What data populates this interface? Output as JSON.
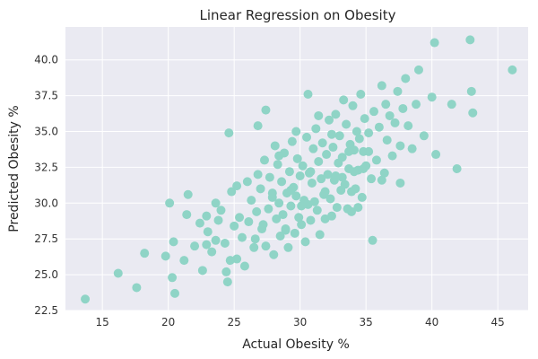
{
  "chart_data": {
    "type": "scatter",
    "title": "Linear Regression on Obesity",
    "xlabel": "Actual Obesity %",
    "ylabel": "Predicted Obesity %",
    "xlim": [
      12.2,
      47.3
    ],
    "ylim": [
      22.5,
      42.3
    ],
    "xticks": [
      15,
      20,
      25,
      30,
      35,
      40,
      45
    ],
    "yticks": [
      22.5,
      25.0,
      27.5,
      30.0,
      32.5,
      35.0,
      37.5,
      40.0
    ],
    "ytick_labels": [
      "22.5",
      "25.0",
      "27.5",
      "30.0",
      "32.5",
      "35.0",
      "37.5",
      "40.0"
    ],
    "grid": true,
    "colors": {
      "background": "#eaeaf2",
      "grid": "#ffffff",
      "marker": "#8fd4c6"
    },
    "x": [
      13.7,
      16.2,
      17.6,
      18.2,
      19.8,
      20.1,
      20.4,
      20.3,
      20.5,
      21.2,
      21.5,
      22.0,
      22.4,
      22.6,
      22.9,
      23.0,
      23.3,
      23.6,
      23.8,
      24.0,
      24.3,
      24.5,
      24.7,
      24.8,
      25.0,
      25.2,
      25.4,
      25.6,
      25.8,
      26.0,
      26.1,
      26.3,
      26.5,
      26.7,
      26.8,
      27.0,
      27.1,
      27.3,
      27.4,
      27.6,
      27.7,
      27.9,
      28.0,
      28.1,
      28.2,
      28.3,
      28.4,
      28.5,
      28.6,
      28.7,
      28.8,
      28.9,
      29.0,
      29.1,
      29.2,
      29.3,
      29.4,
      29.5,
      29.6,
      29.7,
      29.8,
      29.9,
      30.0,
      30.1,
      30.2,
      30.3,
      30.4,
      30.5,
      30.6,
      30.7,
      30.8,
      30.9,
      31.0,
      31.1,
      31.2,
      31.3,
      31.4,
      31.5,
      31.6,
      31.7,
      31.8,
      31.9,
      32.0,
      32.1,
      32.2,
      32.3,
      32.4,
      32.5,
      32.6,
      32.7,
      32.8,
      32.9,
      33.0,
      33.1,
      33.2,
      33.3,
      33.4,
      33.5,
      33.6,
      33.7,
      33.8,
      33.9,
      34.0,
      34.1,
      34.2,
      34.3,
      34.4,
      34.5,
      34.6,
      34.7,
      34.8,
      34.9,
      35.0,
      35.2,
      35.4,
      35.6,
      35.8,
      36.0,
      36.2,
      36.4,
      36.6,
      36.8,
      37.0,
      37.2,
      37.4,
      37.6,
      37.8,
      38.0,
      38.2,
      38.5,
      38.8,
      39.0,
      39.4,
      40.0,
      40.2,
      40.3,
      41.5,
      41.9,
      42.9,
      43.0,
      43.1,
      46.1,
      27.4,
      30.6,
      33.2,
      34.4,
      34.1,
      35.2,
      37.6,
      29.7,
      31.9,
      33.7,
      36.5,
      25.2,
      24.4,
      26.6,
      28.9,
      22.9,
      21.4,
      23.6,
      27.9,
      30.1,
      32.7,
      35.5,
      28.4,
      31.4,
      34.8,
      26.8,
      29.3,
      32.4,
      36.2,
      24.6,
      27.2,
      30.8,
      33.9
    ],
    "y": [
      23.3,
      25.1,
      24.1,
      26.5,
      26.3,
      30.0,
      27.3,
      24.8,
      23.7,
      26.0,
      30.6,
      27.0,
      28.6,
      25.3,
      29.1,
      28.0,
      26.6,
      27.4,
      28.8,
      29.5,
      27.2,
      24.5,
      26.0,
      30.8,
      28.4,
      31.2,
      29.0,
      27.6,
      25.6,
      31.5,
      28.7,
      30.2,
      26.9,
      29.4,
      32.0,
      31.0,
      28.2,
      33.0,
      27.0,
      29.6,
      31.8,
      30.4,
      26.4,
      34.0,
      28.9,
      32.7,
      30.0,
      27.7,
      31.5,
      29.2,
      33.5,
      28.1,
      30.7,
      26.9,
      32.2,
      29.8,
      34.3,
      31.1,
      27.9,
      30.5,
      33.1,
      29.0,
      31.9,
      28.5,
      32.6,
      30.2,
      27.3,
      34.6,
      29.9,
      32.1,
      28.8,
      31.4,
      33.8,
      30.1,
      35.2,
      29.5,
      32.9,
      27.8,
      31.7,
      34.2,
      30.6,
      28.9,
      33.4,
      32.0,
      35.8,
      30.3,
      29.1,
      33.9,
      31.6,
      36.2,
      29.7,
      32.8,
      34.7,
      30.9,
      33.2,
      37.2,
      31.3,
      35.5,
      29.6,
      32.4,
      34.1,
      30.8,
      36.8,
      33.7,
      31.0,
      35.0,
      32.3,
      34.5,
      37.6,
      30.4,
      33.6,
      35.9,
      32.6,
      34.9,
      31.7,
      36.4,
      33.0,
      35.3,
      38.2,
      32.1,
      34.4,
      36.1,
      33.3,
      35.6,
      37.8,
      34.0,
      36.6,
      38.7,
      35.4,
      33.8,
      36.9,
      39.3,
      34.7,
      37.4,
      41.2,
      33.4,
      36.9,
      32.4,
      41.4,
      37.8,
      36.3,
      39.3,
      36.5,
      37.6,
      31.8,
      29.7,
      32.2,
      33.6,
      31.4,
      35.0,
      30.8,
      33.6,
      36.9,
      26.1,
      25.2,
      27.5,
      28.2,
      27.1,
      29.2,
      30.0,
      30.7,
      29.8,
      31.9,
      27.4,
      33.3,
      36.1,
      32.4,
      35.4,
      30.9,
      34.8,
      31.6,
      34.9,
      28.5,
      32.2,
      29.4
    ]
  }
}
